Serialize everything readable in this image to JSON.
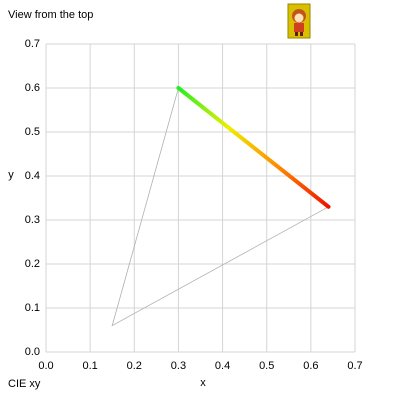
{
  "chart_data": {
    "type": "line",
    "title": "View from the top",
    "caption": "CIE xy",
    "x_label": "x",
    "y_label": "y",
    "xlim": [
      0,
      0.7
    ],
    "ylim": [
      0,
      0.7
    ],
    "xticks": [
      {
        "value": 0,
        "label": "0.0"
      },
      0.1,
      0.2,
      0.3,
      0.4,
      0.5,
      0.6,
      0.7
    ],
    "yticks": [
      {
        "value": 0,
        "label": "0.0"
      },
      0.1,
      0.2,
      0.3,
      0.4,
      0.5,
      0.6,
      0.7
    ],
    "grid": true,
    "series": [
      {
        "color": "#b0b0b0",
        "x": [
          0.64,
          0.3,
          0.15,
          0.64
        ],
        "y": [
          0.33,
          0.6,
          0.06,
          0.33
        ]
      },
      {
        "gradient": [
          "#22ee22",
          "#eeee00",
          "#ff8800",
          "#ee1100"
        ],
        "x": [
          0.3,
          0.64
        ],
        "y": [
          0.6,
          0.33
        ]
      }
    ]
  }
}
